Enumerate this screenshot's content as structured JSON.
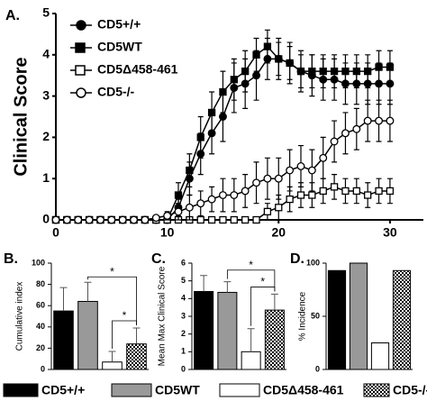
{
  "chart_data": [
    {
      "type": "line",
      "panel": "A.",
      "ylabel": "Clinical Score",
      "x": [
        0,
        1,
        2,
        3,
        4,
        5,
        6,
        7,
        8,
        9,
        10,
        11,
        12,
        13,
        14,
        15,
        16,
        17,
        18,
        19,
        20,
        21,
        22,
        23,
        24,
        25,
        26,
        27,
        28,
        29,
        30
      ],
      "xlim": [
        0,
        33
      ],
      "xticks": [
        0,
        10,
        20,
        30
      ],
      "ylim": [
        0,
        5
      ],
      "yticks": [
        0,
        1,
        2,
        3,
        4,
        5
      ],
      "series": [
        {
          "name": "CD5+/+",
          "color": "#000000",
          "marker": "circle",
          "filled": true,
          "values": [
            0,
            0,
            0,
            0,
            0,
            0,
            0,
            0,
            0,
            0,
            0,
            0.3,
            1.0,
            1.6,
            2.1,
            2.5,
            3.2,
            3.3,
            3.5,
            3.9,
            3.9,
            3.8,
            3.6,
            3.5,
            3.4,
            3.4,
            3.3,
            3.3,
            3.3,
            3.3,
            3.3
          ],
          "errors": [
            0,
            0,
            0,
            0,
            0,
            0,
            0,
            0,
            0,
            0,
            0,
            0.2,
            0.4,
            0.5,
            0.5,
            0.6,
            0.6,
            0.6,
            0.6,
            0.5,
            0.5,
            0.5,
            0.5,
            0.5,
            0.5,
            0.5,
            0.5,
            0.5,
            0.5,
            0.5,
            0.5
          ]
        },
        {
          "name": "CD5WT",
          "color": "#000000",
          "marker": "square",
          "filled": true,
          "values": [
            0,
            0,
            0,
            0,
            0,
            0,
            0,
            0,
            0,
            0,
            0,
            0.6,
            1.2,
            2.0,
            2.6,
            3.1,
            3.4,
            3.6,
            4.0,
            4.2,
            3.9,
            3.8,
            3.6,
            3.6,
            3.6,
            3.6,
            3.6,
            3.6,
            3.6,
            3.7,
            3.7
          ],
          "errors": [
            0,
            0,
            0,
            0,
            0,
            0,
            0,
            0,
            0,
            0,
            0,
            0.3,
            0.4,
            0.5,
            0.5,
            0.5,
            0.5,
            0.5,
            0.4,
            0.4,
            0.4,
            0.4,
            0.4,
            0.4,
            0.4,
            0.4,
            0.4,
            0.4,
            0.4,
            0.4,
            0.4
          ]
        },
        {
          "name": "CD5Δ458-461",
          "color": "#000000",
          "marker": "square",
          "filled": false,
          "values": [
            0,
            0,
            0,
            0,
            0,
            0,
            0,
            0,
            0,
            0,
            0,
            0,
            0,
            0,
            0,
            0,
            0,
            0,
            0,
            0.2,
            0.3,
            0.5,
            0.6,
            0.6,
            0.7,
            0.8,
            0.7,
            0.7,
            0.6,
            0.7,
            0.7
          ],
          "errors": [
            0,
            0,
            0,
            0,
            0,
            0,
            0,
            0,
            0,
            0,
            0,
            0,
            0,
            0,
            0,
            0,
            0,
            0,
            0,
            0.2,
            0.3,
            0.3,
            0.3,
            0.3,
            0.3,
            0.3,
            0.3,
            0.3,
            0.3,
            0.3,
            0.3
          ]
        },
        {
          "name": "CD5-/-",
          "color": "#000000",
          "marker": "circle",
          "filled": false,
          "values": [
            0,
            0,
            0,
            0,
            0,
            0,
            0,
            0,
            0,
            0.05,
            0.1,
            0.2,
            0.3,
            0.4,
            0.5,
            0.6,
            0.6,
            0.7,
            0.9,
            1.0,
            1.0,
            1.2,
            1.3,
            1.2,
            1.5,
            1.9,
            2.1,
            2.2,
            2.4,
            2.4,
            2.4
          ],
          "errors": [
            0,
            0,
            0,
            0,
            0,
            0,
            0,
            0,
            0,
            0.05,
            0.1,
            0.2,
            0.3,
            0.3,
            0.3,
            0.4,
            0.4,
            0.4,
            0.5,
            0.5,
            0.5,
            0.5,
            0.5,
            0.5,
            0.5,
            0.5,
            0.5,
            0.5,
            0.5,
            0.5,
            0.5
          ]
        }
      ]
    },
    {
      "type": "bar",
      "panel": "B.",
      "ylabel": "Cumulative index",
      "categories": [
        null,
        null,
        null,
        null
      ],
      "values": [
        55,
        64,
        7,
        24
      ],
      "errors": [
        22,
        18,
        10,
        15
      ],
      "colors": [
        "#000000",
        "#999999",
        "#ffffff",
        "#ffffff"
      ],
      "styles": [
        "solid",
        "solid",
        "solid",
        "checker"
      ],
      "ylim": [
        0,
        100
      ],
      "yticks": [
        0,
        20,
        40,
        60,
        80,
        100
      ],
      "annotations": [
        "*",
        "*"
      ]
    },
    {
      "type": "bar",
      "panel": "C.",
      "ylabel": "Mean Max Clinical Score",
      "categories": [
        null,
        null,
        null,
        null
      ],
      "values": [
        4.4,
        4.35,
        1.0,
        3.35
      ],
      "errors": [
        0.9,
        0.6,
        1.3,
        0.9
      ],
      "colors": [
        "#000000",
        "#999999",
        "#ffffff",
        "#ffffff"
      ],
      "styles": [
        "solid",
        "solid",
        "solid",
        "checker"
      ],
      "ylim": [
        0,
        6
      ],
      "yticks": [
        0,
        1,
        2,
        3,
        4,
        5,
        6
      ],
      "annotations": [
        "*",
        "*"
      ]
    },
    {
      "type": "bar",
      "panel": "D.",
      "ylabel": "% Incidence",
      "categories": [
        null,
        null,
        null,
        null
      ],
      "values": [
        93,
        100,
        25,
        93
      ],
      "colors": [
        "#000000",
        "#999999",
        "#ffffff",
        "#ffffff"
      ],
      "styles": [
        "solid",
        "solid",
        "solid",
        "checker"
      ],
      "ylim": [
        0,
        100
      ],
      "yticks": [
        0,
        50,
        100
      ]
    }
  ],
  "legend": [
    {
      "name": "CD5+/+",
      "color": "#000000",
      "style": "solid"
    },
    {
      "name": "CD5WT",
      "color": "#999999",
      "style": "solid"
    },
    {
      "name": "CD5Δ458-461",
      "color": "#ffffff",
      "style": "solid"
    },
    {
      "name": "CD5-/-",
      "color": "#ffffff",
      "style": "checker"
    }
  ]
}
